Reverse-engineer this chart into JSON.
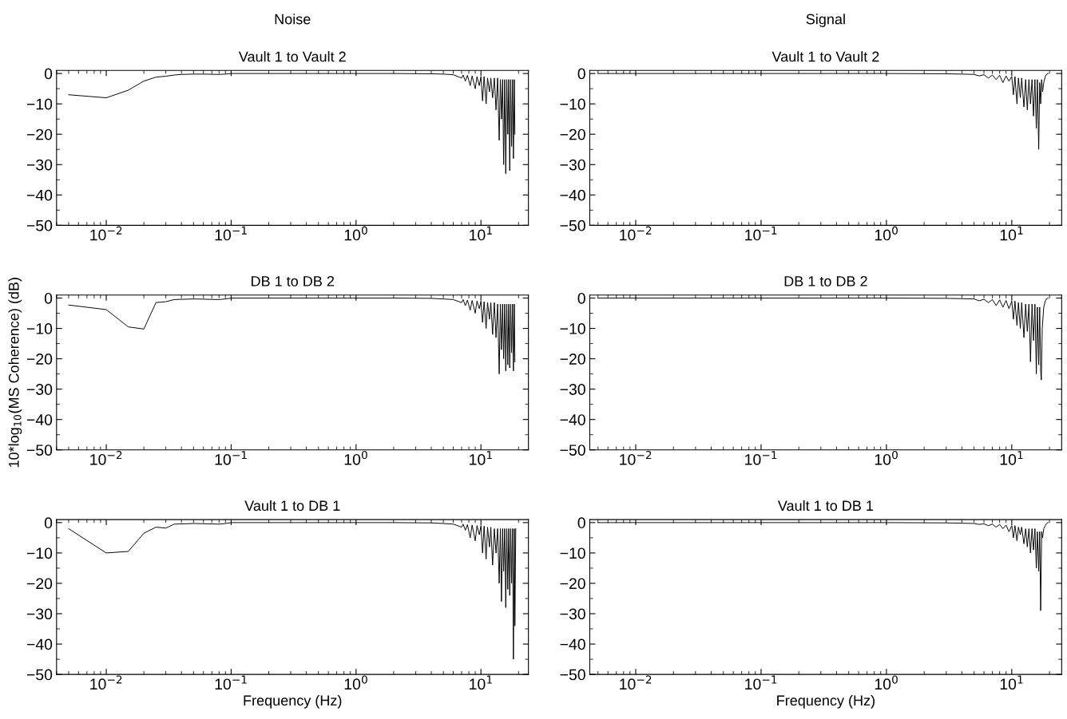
{
  "chart_data": [
    {
      "type": "line",
      "title": "Noise",
      "subtitle": "Vault 1 to Vault 2",
      "log": "x",
      "grid": false,
      "xlim": [
        0.004,
        24
      ],
      "ylim": [
        -50,
        1
      ],
      "yticks": [
        0,
        -10,
        -20,
        -30,
        -40,
        -50
      ],
      "xticks": [
        {
          "value": 0.01,
          "label": "10$^{−2}$"
        },
        {
          "value": 0.1,
          "label": "10$^{−1}$"
        },
        {
          "value": 1,
          "label": "10$^{0}$"
        },
        {
          "value": 10,
          "label": "10$^{1}$"
        }
      ],
      "series": [
        {
          "color": "#000000",
          "x": [
            0.005,
            0.01,
            0.015,
            0.02,
            0.025,
            0.03,
            0.035,
            0.04,
            0.05,
            0.06,
            0.08,
            0.09,
            0.1,
            0.2,
            0.5,
            1,
            2,
            4,
            5,
            6,
            7,
            7.2,
            7.5,
            7.8,
            8.2,
            8.5,
            9,
            9.3,
            9.7,
            10,
            10.3,
            10.6,
            11,
            11.3,
            11.7,
            12,
            12.4,
            12.8,
            13.2,
            13.6,
            14,
            14.3,
            14.6,
            14.9,
            15.2,
            15.5,
            15.8,
            16.1,
            16.4,
            16.7,
            17,
            17.3,
            17.6,
            17.9,
            18.2,
            18.5,
            18.7
          ],
          "values": [
            -7,
            -8,
            -5.5,
            -2.5,
            -1.2,
            -0.9,
            -0.5,
            -0.3,
            -0.2,
            -0.2,
            -0.3,
            -0.2,
            0,
            0,
            0,
            0,
            0,
            -0.1,
            -0.2,
            -0.4,
            -1.5,
            -0.5,
            -2.5,
            -0.6,
            -4,
            -0.8,
            -5,
            -1,
            -4,
            -1,
            -9,
            -1,
            -10,
            -1.5,
            -6,
            -1.5,
            -8,
            -1.5,
            -12,
            -1.5,
            -22,
            -2,
            -15,
            -2,
            -30,
            -2,
            -33,
            -2,
            -20,
            -2,
            -32,
            -2,
            -24,
            -2,
            -28,
            -2,
            -20
          ]
        }
      ]
    },
    {
      "type": "line",
      "title": "Signal",
      "subtitle": "Vault 1 to Vault 2",
      "log": "x",
      "grid": false,
      "xlim": [
        0.0043,
        25
      ],
      "ylim": [
        -50,
        1
      ],
      "yticks": [
        0,
        -10,
        -20,
        -30,
        -40,
        -50
      ],
      "xticks": [
        {
          "value": 0.01,
          "label": "10$^{−2}$"
        },
        {
          "value": 0.1,
          "label": "10$^{−1}$"
        },
        {
          "value": 1,
          "label": "10$^{0}$"
        },
        {
          "value": 10,
          "label": "10$^{1}$"
        }
      ],
      "series": [
        {
          "color": "#000000",
          "x": [
            0.005,
            0.1,
            1,
            3,
            4,
            5,
            5.5,
            6,
            6.5,
            7,
            7.5,
            8,
            8.5,
            9,
            9.5,
            10,
            10.3,
            10.6,
            11,
            11.3,
            11.7,
            12,
            12.5,
            12.9,
            13.3,
            13.7,
            14.1,
            14.5,
            14.9,
            15.3,
            15.7,
            16,
            16.4,
            16.7,
            17,
            17.3,
            17.6,
            18,
            18.5,
            19,
            19.5
          ],
          "values": [
            0,
            0,
            0,
            -0.1,
            -0.2,
            -0.3,
            -0.8,
            -0.4,
            -1.5,
            -0.5,
            -2,
            -0.6,
            -3,
            -0.8,
            -2.5,
            -1,
            -7,
            -1,
            -10,
            -1.5,
            -8,
            -1.5,
            -11,
            -2,
            -12,
            -2,
            -10,
            -2,
            -14,
            -2,
            -18,
            -2,
            -25,
            -3,
            -10,
            -2,
            -6,
            -3,
            -1,
            -0.2,
            0
          ]
        }
      ]
    },
    {
      "type": "line",
      "title": "DB 1 to DB 2",
      "log": "x",
      "grid": false,
      "ylabel": "10*log$_{10}$(MS Coherence) (dB)",
      "xlim": [
        0.004,
        24
      ],
      "ylim": [
        -50,
        1
      ],
      "yticks": [
        0,
        -10,
        -20,
        -30,
        -40,
        -50
      ],
      "xticks": [
        {
          "value": 0.01,
          "label": "10$^{−2}$"
        },
        {
          "value": 0.1,
          "label": "10$^{−1}$"
        },
        {
          "value": 1,
          "label": "10$^{0}$"
        },
        {
          "value": 10,
          "label": "10$^{1}$"
        }
      ],
      "series": [
        {
          "color": "#000000",
          "x": [
            0.005,
            0.01,
            0.015,
            0.02,
            0.025,
            0.03,
            0.035,
            0.05,
            0.08,
            0.09,
            0.1,
            0.2,
            0.5,
            1,
            2,
            4,
            5,
            6,
            7,
            7.2,
            7.5,
            7.8,
            8.2,
            8.5,
            9,
            9.3,
            9.7,
            10,
            10.3,
            10.6,
            11,
            11.3,
            11.7,
            12,
            12.4,
            12.8,
            13.2,
            13.6,
            14,
            14.3,
            14.6,
            14.9,
            15.2,
            15.5,
            15.8,
            16.1,
            16.4,
            16.7,
            17,
            17.3,
            17.6,
            17.9,
            18.2,
            18.5,
            18.7
          ],
          "values": [
            -2.3,
            -3.8,
            -9.5,
            -10.2,
            -1.5,
            -1.2,
            -0.5,
            -0.3,
            -0.5,
            -0.3,
            0,
            0,
            0,
            0,
            0,
            -0.1,
            -0.3,
            -0.5,
            -1.5,
            -0.5,
            -2.5,
            -0.7,
            -4,
            -0.8,
            -5,
            -1,
            -3.5,
            -1,
            -8,
            -1.2,
            -10,
            -1.5,
            -7,
            -1.5,
            -12,
            -1.5,
            -13,
            -2,
            -25,
            -2,
            -17,
            -2,
            -20,
            -2,
            -24,
            -2,
            -22,
            -2,
            -23,
            -2,
            -18,
            -2,
            -24,
            -2,
            -21
          ]
        }
      ]
    },
    {
      "type": "line",
      "title": "DB 1 to DB 2",
      "log": "x",
      "grid": false,
      "xlim": [
        0.0043,
        25
      ],
      "ylim": [
        -50,
        1
      ],
      "yticks": [
        0,
        -10,
        -20,
        -30,
        -40,
        -50
      ],
      "xticks": [
        {
          "value": 0.01,
          "label": "10$^{−2}$"
        },
        {
          "value": 0.1,
          "label": "10$^{−1}$"
        },
        {
          "value": 1,
          "label": "10$^{0}$"
        },
        {
          "value": 10,
          "label": "10$^{1}$"
        }
      ],
      "series": [
        {
          "color": "#000000",
          "x": [
            0.005,
            0.1,
            1,
            3,
            4,
            5,
            5.5,
            6,
            6.5,
            7,
            7.5,
            8,
            8.5,
            9,
            9.5,
            10,
            10.3,
            10.6,
            11,
            11.3,
            11.7,
            12,
            12.5,
            12.9,
            13.3,
            13.7,
            14.1,
            14.5,
            14.9,
            15.3,
            15.7,
            16,
            16.4,
            16.7,
            17,
            17.2,
            17.5,
            18,
            18.5,
            19,
            19.5
          ],
          "values": [
            0,
            0,
            0,
            -0.1,
            -0.2,
            -0.3,
            -0.9,
            -0.4,
            -1.5,
            -0.5,
            -2.5,
            -0.6,
            -3,
            -0.8,
            -3.5,
            -1,
            -7,
            -1,
            -9,
            -1.5,
            -10,
            -1.5,
            -13,
            -2,
            -11,
            -2,
            -21,
            -2,
            -14,
            -2,
            -25,
            -3,
            -22,
            -3,
            -24,
            -27,
            -10,
            -3,
            -1,
            -0.2,
            0
          ]
        }
      ]
    },
    {
      "type": "line",
      "title": "Vault 1 to DB 1",
      "log": "x",
      "grid": false,
      "xlabel": "Frequency (Hz)",
      "xlim": [
        0.004,
        24
      ],
      "ylim": [
        -50,
        1
      ],
      "yticks": [
        0,
        -10,
        -20,
        -30,
        -40,
        -50
      ],
      "xticks": [
        {
          "value": 0.01,
          "label": "10$^{−2}$"
        },
        {
          "value": 0.1,
          "label": "10$^{−1}$"
        },
        {
          "value": 1,
          "label": "10$^{0}$"
        },
        {
          "value": 10,
          "label": "10$^{1}$"
        }
      ],
      "series": [
        {
          "color": "#000000",
          "x": [
            0.005,
            0.01,
            0.015,
            0.02,
            0.025,
            0.03,
            0.035,
            0.05,
            0.08,
            0.09,
            0.1,
            0.2,
            0.5,
            1,
            2,
            4,
            5,
            6,
            7,
            7.2,
            7.5,
            7.8,
            8.2,
            8.5,
            9,
            9.3,
            9.7,
            10,
            10.3,
            10.6,
            11,
            11.3,
            11.7,
            12,
            12.4,
            12.8,
            13.2,
            13.6,
            14,
            14.3,
            14.6,
            14.9,
            15.2,
            15.5,
            15.8,
            16.1,
            16.4,
            16.7,
            17,
            17.3,
            17.6,
            17.9,
            18.2,
            18.5,
            18.7,
            19
          ],
          "values": [
            -2,
            -10,
            -9.5,
            -3.5,
            -1.5,
            -1.8,
            -0.5,
            -0.3,
            -0.5,
            -0.3,
            0,
            0,
            0,
            0,
            0,
            -0.1,
            -0.3,
            -0.5,
            -1.5,
            -0.5,
            -2.5,
            -0.7,
            -5,
            -0.8,
            -6,
            -1,
            -4,
            -1,
            -10,
            -1.2,
            -12,
            -1.5,
            -8,
            -1.5,
            -14,
            -2,
            -10,
            -2,
            -20,
            -2,
            -26,
            -2,
            -16,
            -2,
            -28,
            -2,
            -22,
            -2,
            -24,
            -2,
            -20,
            -2,
            -45,
            -2,
            -34,
            -2
          ]
        }
      ]
    },
    {
      "type": "line",
      "title": "Vault 1 to DB 1",
      "log": "x",
      "grid": false,
      "xlabel": "Frequency (Hz)",
      "xlim": [
        0.0043,
        25
      ],
      "ylim": [
        -50,
        1
      ],
      "yticks": [
        0,
        -10,
        -20,
        -30,
        -40,
        -50
      ],
      "xticks": [
        {
          "value": 0.01,
          "label": "10$^{−2}$"
        },
        {
          "value": 0.1,
          "label": "10$^{−1}$"
        },
        {
          "value": 1,
          "label": "10$^{0}$"
        },
        {
          "value": 10,
          "label": "10$^{1}$"
        }
      ],
      "series": [
        {
          "color": "#000000",
          "x": [
            0.005,
            0.1,
            1,
            3,
            4,
            5,
            5.5,
            6,
            6.5,
            7,
            7.5,
            8,
            8.5,
            9,
            9.5,
            10,
            10.3,
            10.6,
            11,
            11.3,
            11.7,
            12,
            12.5,
            12.9,
            13.3,
            13.7,
            14.1,
            14.5,
            14.9,
            15.3,
            15.7,
            16,
            16.4,
            16.7,
            17,
            17.3,
            17.6,
            18,
            18.5,
            19,
            19.5
          ],
          "values": [
            0,
            0,
            0,
            -0.1,
            -0.2,
            -0.3,
            -0.6,
            -0.4,
            -1,
            -0.5,
            -1.5,
            -0.6,
            -2,
            -0.8,
            -3,
            -1,
            -5,
            -1,
            -6,
            -1.5,
            -4,
            -1.5,
            -7,
            -2,
            -8,
            -2,
            -10,
            -2,
            -9,
            -2,
            -15,
            -3,
            -16,
            -3,
            -29,
            -3,
            -5,
            -2,
            -1,
            -0.2,
            0
          ]
        }
      ]
    }
  ]
}
